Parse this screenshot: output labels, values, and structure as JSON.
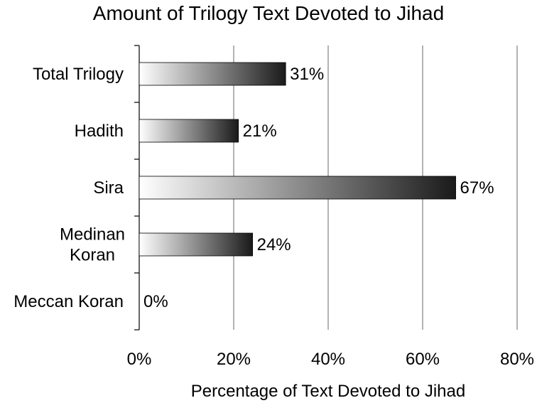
{
  "chart_data": {
    "type": "bar",
    "orientation": "horizontal",
    "title": "Amount of Trilogy Text Devoted  to Jihad",
    "xlabel": "Percentage of Text Devoted to Jihad",
    "ylabel": "",
    "categories": [
      [
        "Total Trilogy"
      ],
      [
        "Hadith"
      ],
      [
        "Sira"
      ],
      [
        "Medinan",
        "Koran"
      ],
      [
        "Meccan Koran"
      ]
    ],
    "values": [
      31,
      21,
      67,
      24,
      0
    ],
    "value_labels": [
      "31%",
      "21%",
      "67%",
      "24%",
      "0%"
    ],
    "xlim": [
      0,
      80
    ],
    "xticks": [
      0,
      20,
      40,
      60,
      80
    ],
    "xtick_labels": [
      "0%",
      "20%",
      "40%",
      "60%",
      "80%"
    ],
    "grid": "vertical",
    "legend": "none",
    "colors": {
      "gradient_start": "#ffffff",
      "gradient_end": "#1a1a1a",
      "gridline": "#808080",
      "axis": "#000000"
    }
  }
}
